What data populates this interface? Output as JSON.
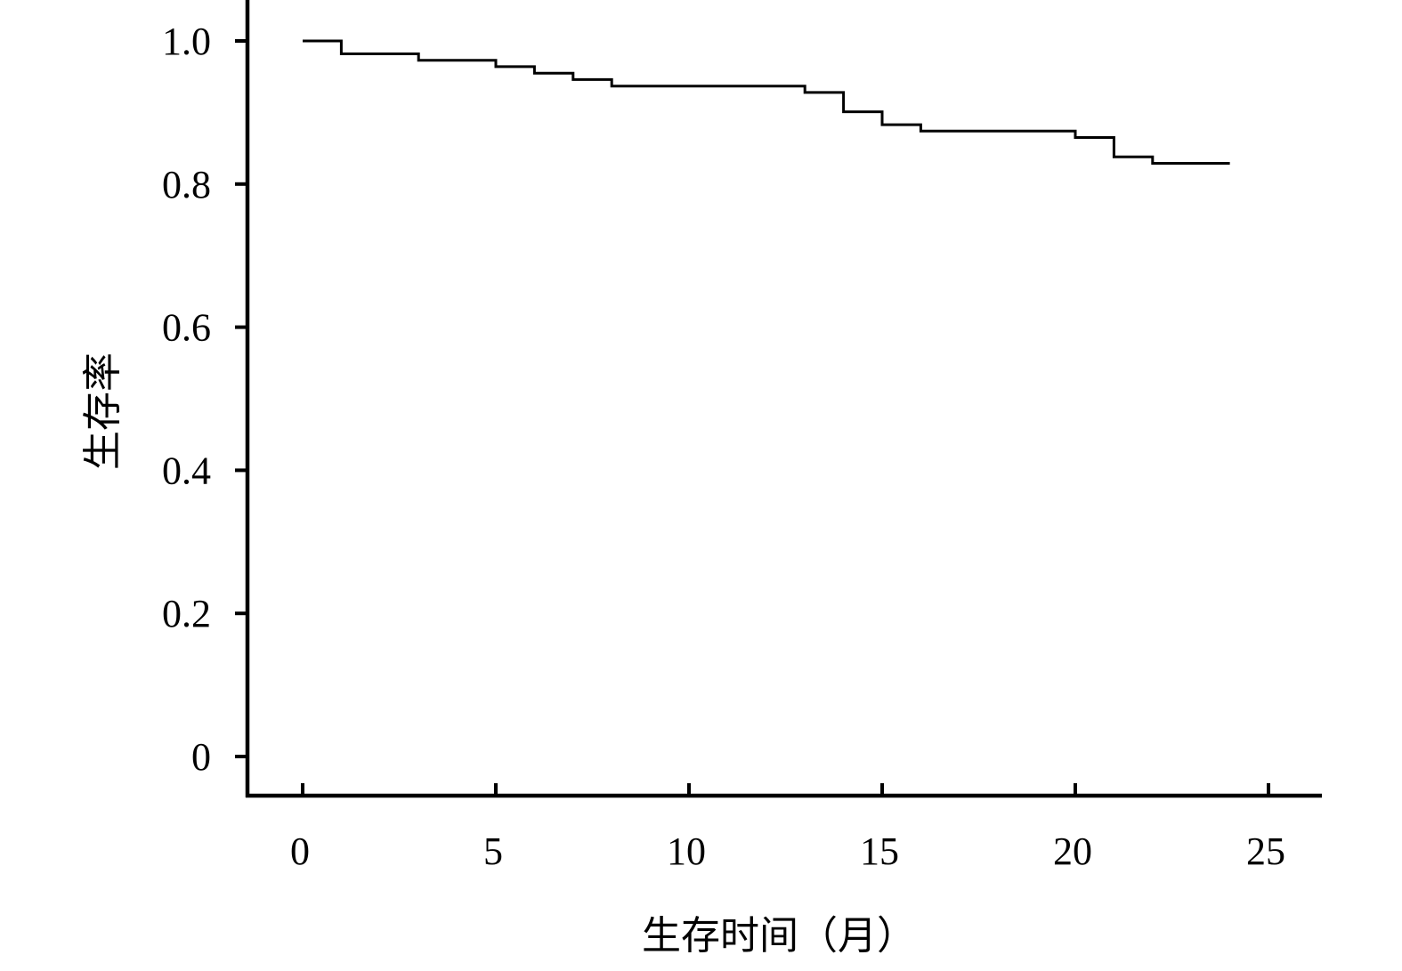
{
  "chart_data": {
    "type": "line",
    "step": true,
    "title": "",
    "xlabel": "生存时间（月）",
    "ylabel": "生存率",
    "xlim": [
      -1.4,
      26.5
    ],
    "ylim": [
      -0.055,
      1.04
    ],
    "x_ticks": [
      0,
      5,
      10,
      15,
      20,
      25
    ],
    "x_tick_labels": [
      "0",
      "5",
      "10",
      "15",
      "20",
      "25"
    ],
    "y_ticks": [
      0,
      0.2,
      0.4,
      0.6,
      0.8,
      1.0
    ],
    "y_tick_labels": [
      "0",
      "0.2",
      "0.4",
      "0.6",
      "0.8",
      "1.0"
    ],
    "grid": false,
    "line_color": "#000000",
    "series": [
      {
        "x": [
          0,
          1,
          3,
          5,
          6,
          7,
          8,
          13,
          14,
          15,
          16,
          20,
          21,
          22,
          24
        ],
        "y": [
          1.0,
          0.982,
          0.973,
          0.964,
          0.955,
          0.946,
          0.937,
          0.928,
          0.901,
          0.883,
          0.874,
          0.865,
          0.838,
          0.829,
          0.829
        ]
      }
    ]
  }
}
